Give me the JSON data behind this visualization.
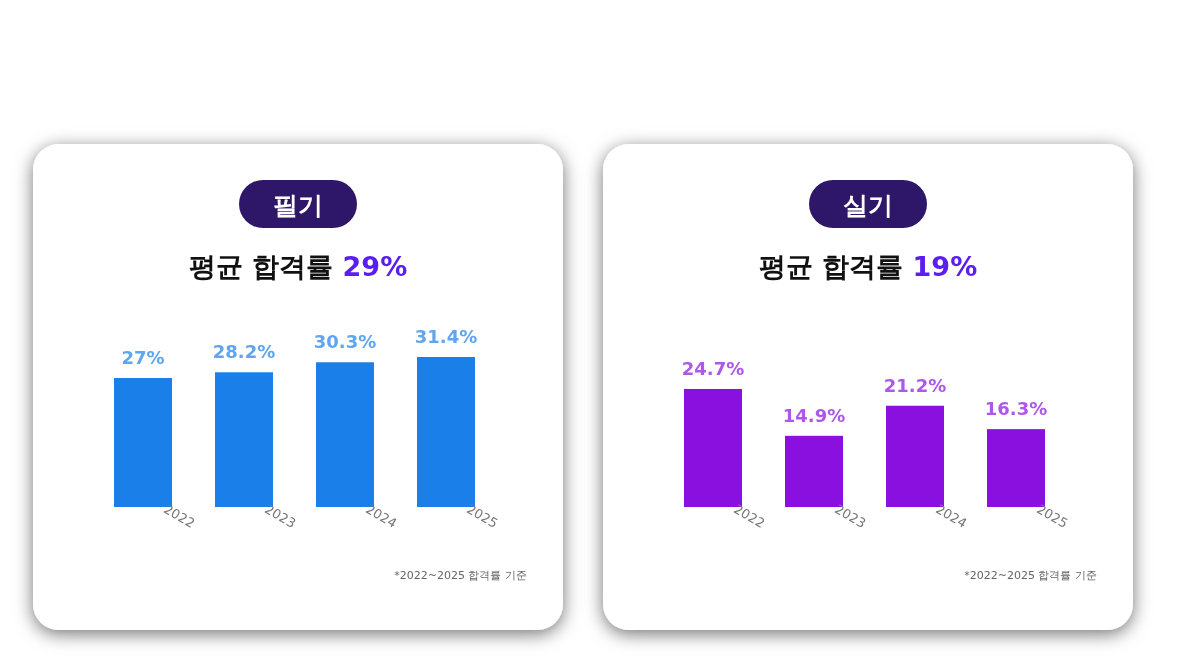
{
  "chart_data": [
    {
      "type": "bar",
      "title": "필기",
      "subtitle": "평균 합격률 29%",
      "categories": [
        "2022",
        "2023",
        "2024",
        "2025"
      ],
      "values": [
        27,
        28.2,
        30.3,
        31.4
      ],
      "value_labels": [
        "27%",
        "28.2%",
        "30.3%",
        "31.4%"
      ],
      "color": "#1a7fe8",
      "annotations": [
        "*2022~2025 합격률 기준"
      ]
    },
    {
      "type": "bar",
      "title": "실기",
      "subtitle": "평균 합격률 19%",
      "categories": [
        "2022",
        "2023",
        "2024",
        "2025"
      ],
      "values": [
        24.7,
        14.9,
        21.2,
        16.3
      ],
      "value_labels": [
        "24.7%",
        "14.9%",
        "21.2%",
        "16.3%"
      ],
      "color": "#8a10e0",
      "annotations": [
        "*2022~2025 합격률 기준"
      ]
    }
  ]
}
